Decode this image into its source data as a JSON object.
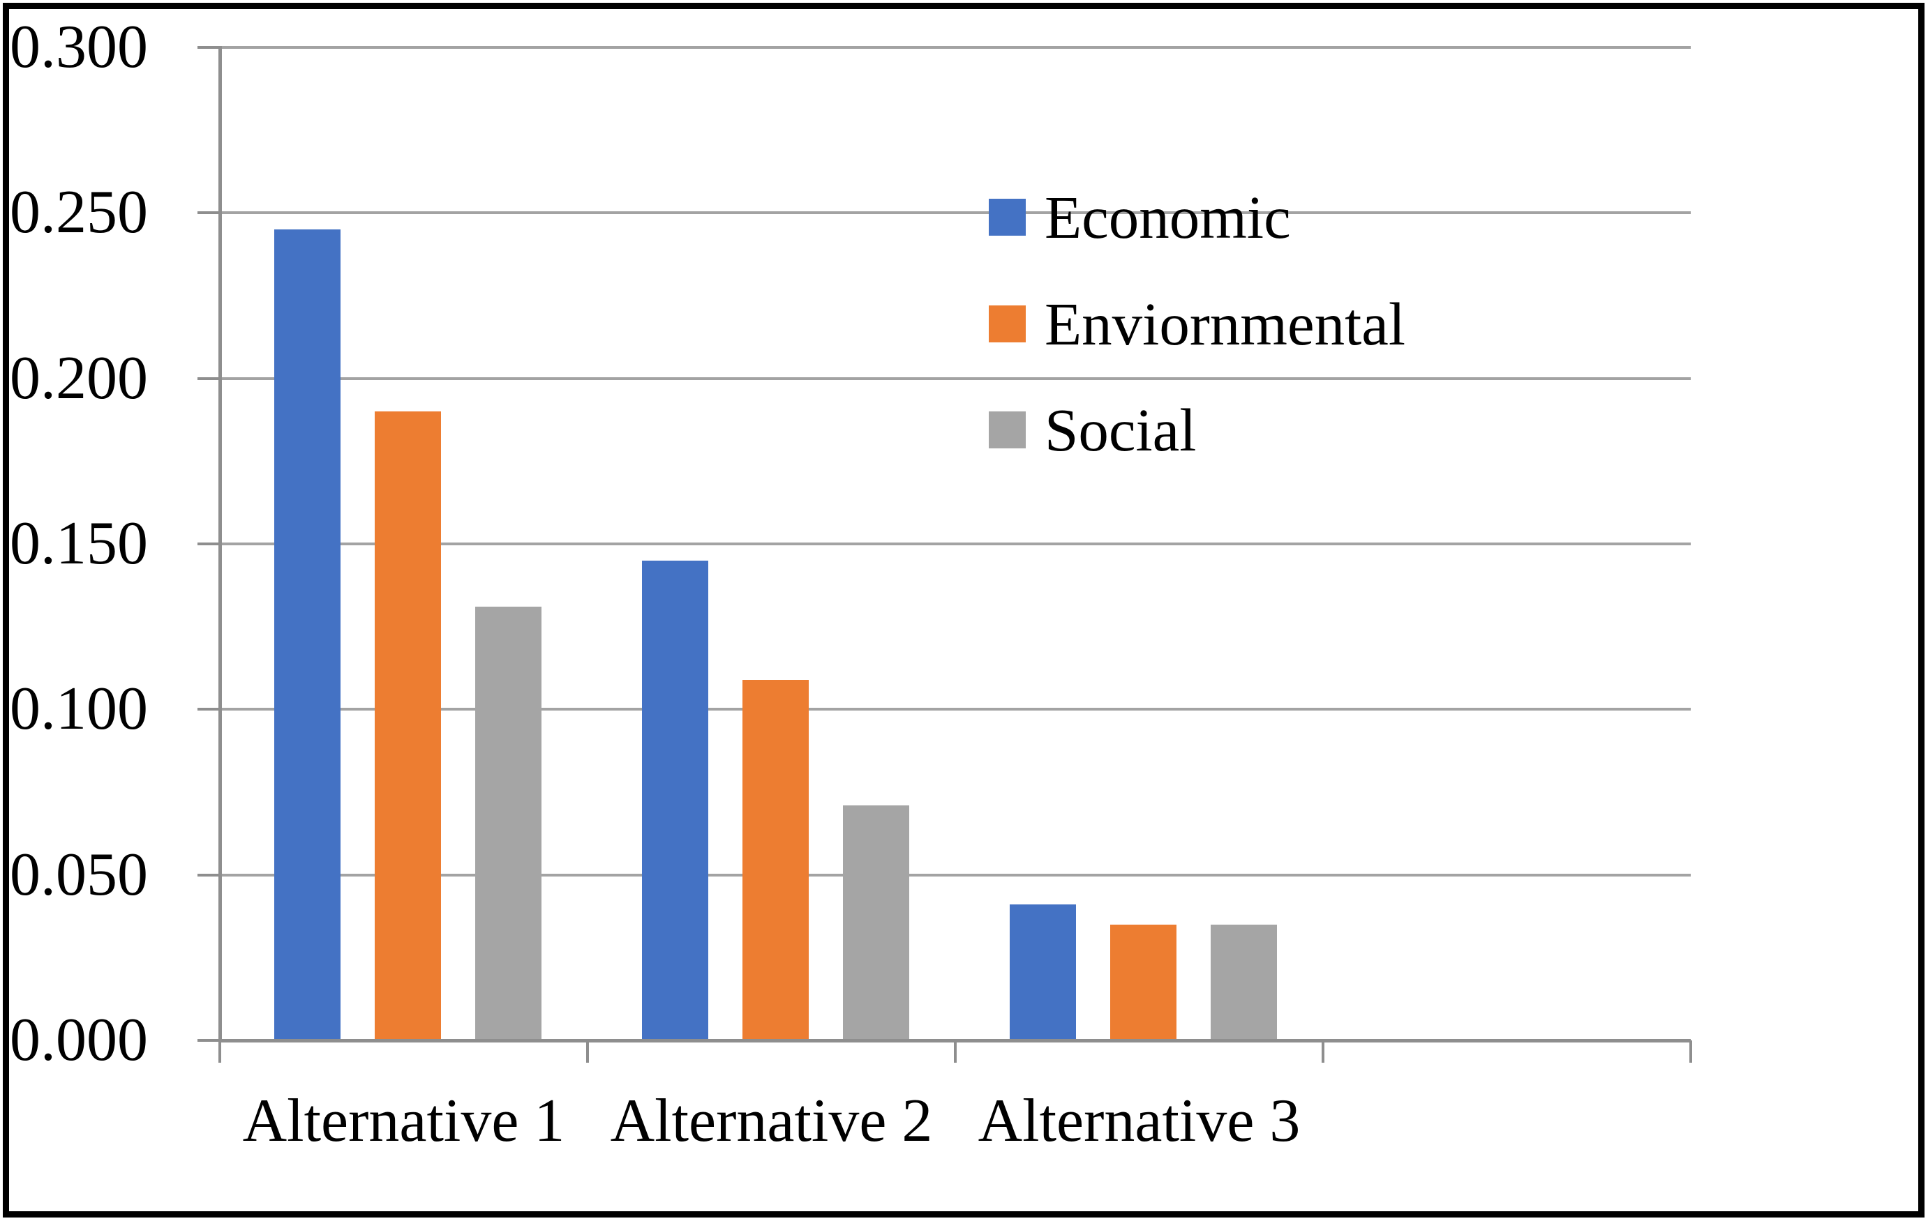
{
  "chart_data": {
    "type": "bar",
    "title": "",
    "xlabel": "",
    "ylabel": "",
    "categories": [
      "Alternative 1",
      "Alternative 2",
      "Alternative 3"
    ],
    "series": [
      {
        "name": "Economic",
        "color": "#4472C4",
        "values": [
          0.245,
          0.145,
          0.041
        ]
      },
      {
        "name": "Enviornmental",
        "color": "#ED7D31",
        "values": [
          0.19,
          0.109,
          0.035
        ]
      },
      {
        "name": "Social",
        "color": "#A5A5A5",
        "values": [
          0.131,
          0.071,
          0.035
        ]
      }
    ],
    "ylim": [
      0,
      0.3
    ],
    "ytick_step": 0.05,
    "ytick_labels": [
      "0.000",
      "0.050",
      "0.100",
      "0.150",
      "0.200",
      "0.250",
      "0.300"
    ],
    "grid": true,
    "legend_position": "inside-upper-right",
    "x_slots_total": 4,
    "colors": {
      "gridline": "#a3a3a3",
      "axis": "#8e8e8e",
      "tick": "#8e8e8e",
      "text": "#000000",
      "border": "#000000",
      "background": "#ffffff"
    }
  }
}
